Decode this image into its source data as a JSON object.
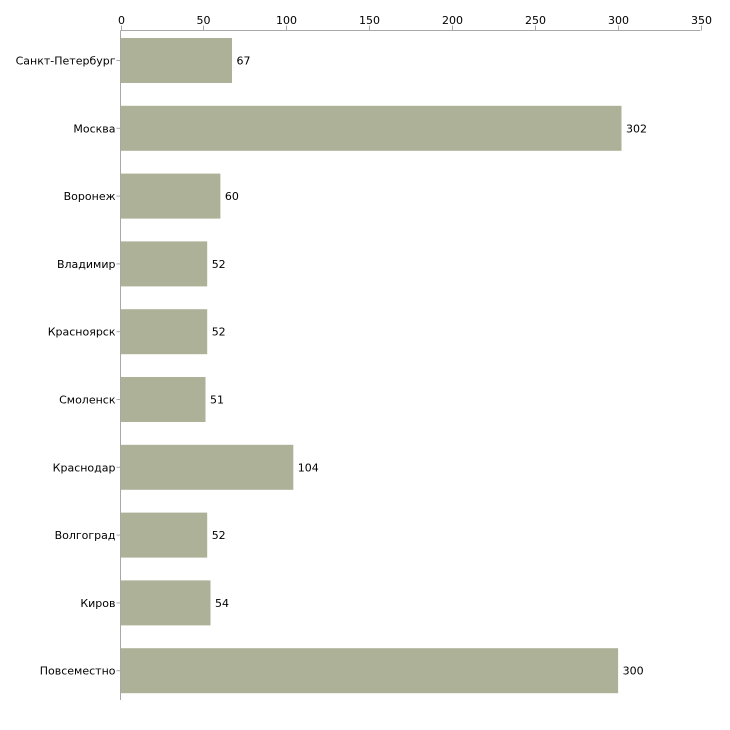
{
  "chart_data": {
    "type": "bar",
    "orientation": "horizontal",
    "title": "",
    "xlabel": "",
    "ylabel": "",
    "xlim": [
      0,
      350
    ],
    "ticks": [
      0,
      50,
      100,
      150,
      200,
      250,
      300,
      350
    ],
    "axis_position": "top",
    "grid": false,
    "categories": [
      "Санкт-Петербург",
      "Москва",
      "Воронеж",
      "Владимир",
      "Красноярск",
      "Смоленск",
      "Краснодар",
      "Волгоград",
      "Киров",
      "Повсеместно"
    ],
    "values": [
      67,
      302,
      60,
      52,
      52,
      51,
      104,
      52,
      54,
      300
    ],
    "colors": {
      "bar": "#acb197",
      "axis": "#a8a8a8"
    }
  }
}
